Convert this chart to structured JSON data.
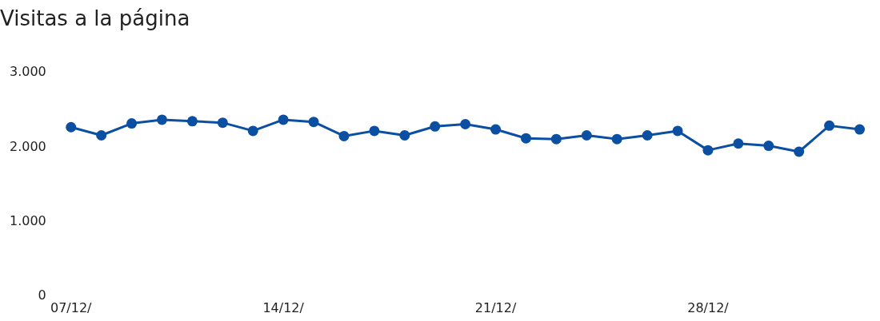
{
  "chart_data": {
    "type": "line",
    "title": "Visitas a la página",
    "categories": [
      "07/12/",
      null,
      null,
      null,
      null,
      null,
      null,
      "14/12/",
      null,
      null,
      null,
      null,
      null,
      null,
      "21/12/",
      null,
      null,
      null,
      null,
      null,
      null,
      "28/12/",
      null,
      null,
      null,
      null,
      null
    ],
    "series": [
      {
        "color": "#0b4fa2",
        "values": [
          2270,
          2160,
          2320,
          2370,
          2350,
          2330,
          2220,
          2370,
          2340,
          2150,
          2220,
          2160,
          2280,
          2310,
          2240,
          2120,
          2110,
          2160,
          2110,
          2160,
          2220,
          1960,
          2050,
          2020,
          1940,
          2290,
          2240
        ]
      }
    ],
    "ylim": [
      0,
      3000
    ],
    "yticks": [
      {
        "value": 0,
        "label": "0"
      },
      {
        "value": 1000,
        "label": "1.000"
      },
      {
        "value": 2000,
        "label": "2.000"
      },
      {
        "value": 3000,
        "label": "3.000"
      }
    ],
    "grid": false,
    "legend": false,
    "marker": "circle",
    "line_style": "solid"
  }
}
